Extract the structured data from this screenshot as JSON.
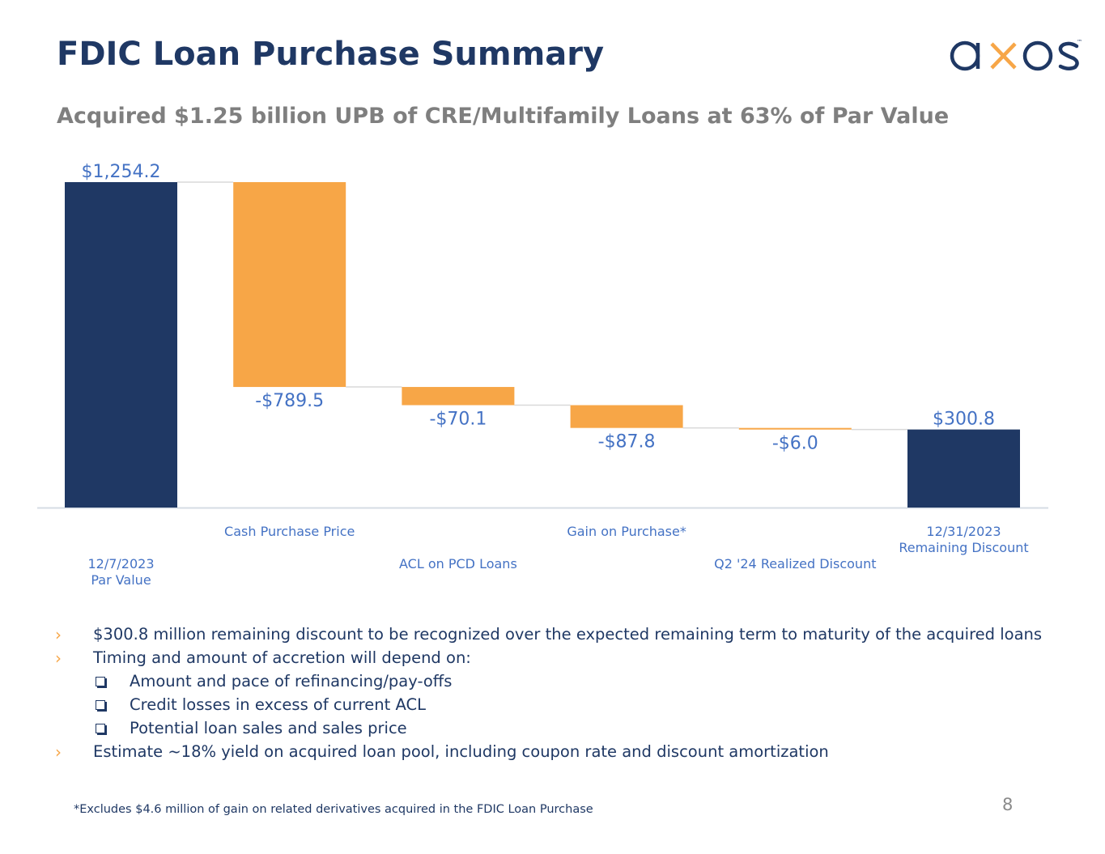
{
  "header": {
    "title": "FDIC Loan Purchase Summary",
    "subtitle": "Acquired $1.25 billion UPB of CRE/Multifamily Loans at 63% of Par Value"
  },
  "logo": {
    "text": "axos",
    "tm": "™"
  },
  "colors": {
    "navy": "#1f3864",
    "orange": "#f7a647",
    "label_blue": "#4472c4"
  },
  "chart_data": {
    "type": "bar",
    "subtype": "waterfall",
    "title": "",
    "xlabel": "",
    "ylabel": "",
    "categories": [
      [
        "12/7/2023",
        "Par Value"
      ],
      [
        "Cash Purchase Price"
      ],
      [
        "ACL on PCD Loans"
      ],
      [
        "Gain on Purchase*"
      ],
      [
        "Q2 '24 Realized Discount"
      ],
      [
        "12/31/2023",
        "Remaining Discount"
      ]
    ],
    "values": [
      1254.2,
      -789.5,
      -70.1,
      -87.8,
      -6.0,
      300.8
    ],
    "kinds": [
      "total",
      "delta",
      "delta",
      "delta",
      "delta",
      "total"
    ],
    "value_labels": [
      "$1,254.2",
      "-$789.5",
      "-$70.1",
      "-$87.8",
      "-$6.0",
      "$300.8"
    ],
    "ylim": [
      0,
      1300
    ],
    "grid": false,
    "legend": "none"
  },
  "bullets": [
    {
      "type": "main",
      "text": "$300.8 million remaining discount to be recognized over the expected remaining term to maturity of the acquired loans"
    },
    {
      "type": "main",
      "text": "Timing and amount of accretion will depend on:"
    },
    {
      "type": "sub",
      "text": "Amount and pace of refinancing/pay-offs"
    },
    {
      "type": "sub",
      "text": "Credit losses in excess of current ACL"
    },
    {
      "type": "sub",
      "text": "Potential loan sales and sales price"
    },
    {
      "type": "main",
      "text": "Estimate ~18% yield on acquired loan pool, including coupon rate and discount amortization"
    }
  ],
  "bullet_glyph": "›",
  "footnote": "*Excludes $4.6 million of gain on related derivatives acquired in the FDIC Loan Purchase",
  "page_number": "8"
}
